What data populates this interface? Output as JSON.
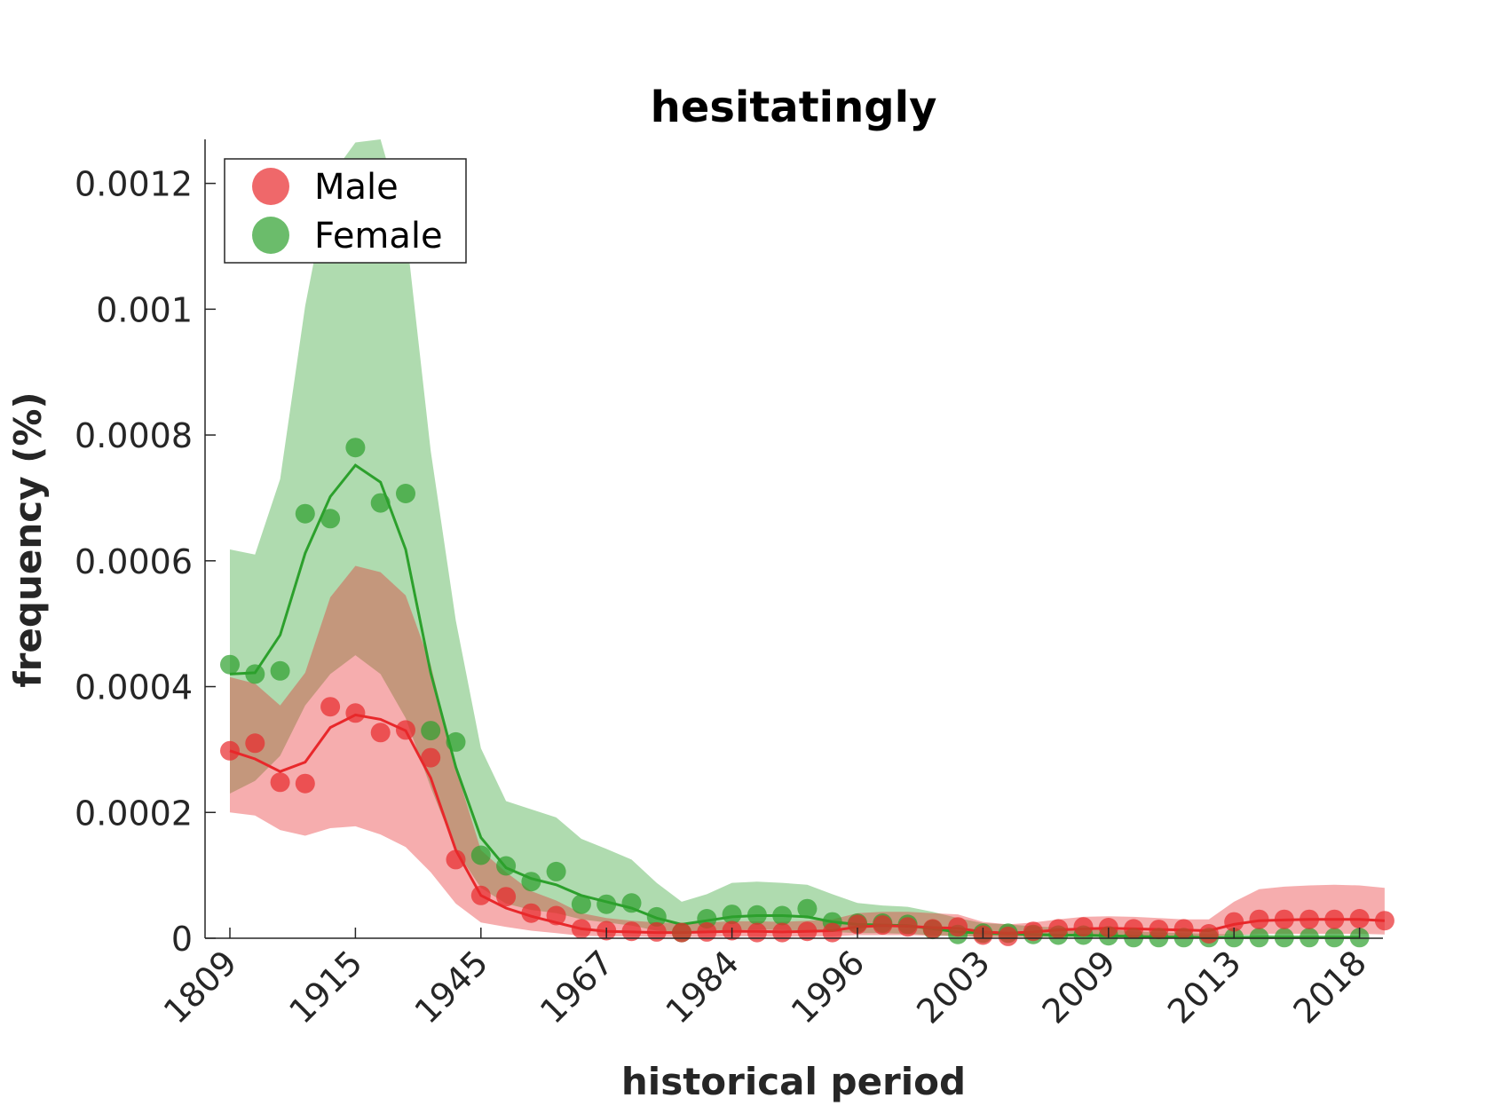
{
  "chart_data": {
    "type": "line",
    "title": "hesitatingly",
    "xlabel": "historical period",
    "ylabel": "frequency (%)",
    "x_tick_labels": [
      "1809",
      "1915",
      "1945",
      "1967",
      "1984",
      "1996",
      "2003",
      "2009",
      "2013",
      "2018"
    ],
    "y_ticks": [
      0,
      0.0002,
      0.0004,
      0.0006,
      0.0008,
      0.001,
      0.0012
    ],
    "y_tick_labels": [
      "0",
      "0.0002",
      "0.0004",
      "0.0006",
      "0.0008",
      "0.001",
      "0.0012"
    ],
    "ylim": [
      0,
      0.00127
    ],
    "grid": false,
    "legend_position": "top-left",
    "colors": {
      "Male": "#e8282b",
      "Female": "#2ca02c"
    },
    "series": [
      {
        "name": "Male",
        "points": [
          0.000298,
          0.00031,
          0.000248,
          0.000246,
          0.000368,
          0.000358,
          0.000327,
          0.000331,
          0.000287,
          0.000125,
          6.8e-05,
          6.6e-05,
          4e-05,
          3.6e-05,
          1.5e-05,
          1.2e-05,
          1.1e-05,
          1e-05,
          9e-06,
          1e-05,
          1.2e-05,
          9e-06,
          9e-06,
          1.1e-05,
          9e-06,
          2.2e-05,
          2.1e-05,
          1.8e-05,
          1.5e-05,
          1.8e-05,
          5e-06,
          3e-06,
          1.1e-05,
          1.5e-05,
          1.8e-05,
          1.7e-05,
          1.5e-05,
          1.4e-05,
          1.5e-05,
          7e-06,
          2.6e-05,
          3e-05,
          3e-05,
          3e-05,
          3e-05,
          3.1e-05,
          2.8e-05
        ],
        "trend": [
          0.000298,
          0.000285,
          0.000265,
          0.00028,
          0.000335,
          0.000355,
          0.000348,
          0.00033,
          0.000255,
          0.00014,
          6.8e-05,
          4.8e-05,
          3.5e-05,
          2.5e-05,
          1.5e-05,
          1.1e-05,
          1e-05,
          9e-06,
          9e-06,
          1e-05,
          1.1e-05,
          1.1e-05,
          1e-05,
          1.1e-05,
          1.2e-05,
          1.8e-05,
          2e-05,
          1.9e-05,
          1.7e-05,
          1.6e-05,
          1e-05,
          8e-06,
          1e-05,
          1.3e-05,
          1.5e-05,
          1.6e-05,
          1.5e-05,
          1.4e-05,
          1.3e-05,
          1.2e-05,
          2.2e-05,
          2.8e-05,
          2.9e-05,
          3e-05,
          3e-05,
          3e-05,
          2.8e-05
        ],
        "band_lower": [
          0.0002,
          0.000195,
          0.000172,
          0.000163,
          0.000175,
          0.000178,
          0.000165,
          0.000145,
          0.000105,
          5.5e-05,
          2.5e-05,
          1.8e-05,
          1.2e-05,
          8e-06,
          4e-06,
          3e-06,
          3e-06,
          2e-06,
          2e-06,
          2e-06,
          3e-06,
          3e-06,
          2e-06,
          3e-06,
          3e-06,
          5e-06,
          5e-06,
          5e-06,
          4e-06,
          4e-06,
          2e-06,
          2e-06,
          2e-06,
          3e-06,
          4e-06,
          4e-06,
          4e-06,
          3e-06,
          3e-06,
          3e-06,
          5e-06,
          7e-06,
          7e-06,
          7e-06,
          7e-06,
          7e-06,
          6e-06
        ],
        "band_upper": [
          0.000415,
          0.000405,
          0.00037,
          0.000422,
          0.000542,
          0.000592,
          0.000582,
          0.000545,
          0.000435,
          0.00027,
          0.00014,
          0.000105,
          7.5e-05,
          6e-05,
          4e-05,
          3.2e-05,
          2.8e-05,
          2.5e-05,
          2.4e-05,
          2.5e-05,
          2.7e-05,
          2.7e-05,
          2.6e-05,
          2.8e-05,
          3e-05,
          4e-05,
          4.2e-05,
          4.2e-05,
          4e-05,
          3.8e-05,
          2.6e-05,
          2.2e-05,
          2.5e-05,
          3e-05,
          3.4e-05,
          3.5e-05,
          3.4e-05,
          3.2e-05,
          3e-05,
          3e-05,
          5.8e-05,
          7.8e-05,
          8.2e-05,
          8.4e-05,
          8.5e-05,
          8.4e-05,
          8e-05
        ]
      },
      {
        "name": "Female",
        "points": [
          0.000435,
          0.00042,
          0.000425,
          0.000675,
          0.000667,
          0.00078,
          0.000692,
          0.000707,
          0.00033,
          0.000312,
          0.000132,
          0.000115,
          9e-05,
          0.000106,
          5.4e-05,
          5.4e-05,
          5.6e-05,
          3.4e-05,
          9e-06,
          3.1e-05,
          3.8e-05,
          3.7e-05,
          3.6e-05,
          4.7e-05,
          2.6e-05,
          2.4e-05,
          2.4e-05,
          2.2e-05,
          1.4e-05,
          6e-06,
          8e-06,
          8e-06,
          6e-06,
          5e-06,
          5e-06,
          4e-06,
          1e-06,
          1e-06,
          1e-06,
          1e-06,
          1e-06,
          1e-06,
          1e-06,
          1e-06,
          1e-06,
          1e-06
        ],
        "trend": [
          0.00042,
          0.000422,
          0.000482,
          0.000612,
          0.000702,
          0.000752,
          0.000725,
          0.000618,
          0.000422,
          0.000272,
          0.00016,
          0.000112,
          9.5e-05,
          8.5e-05,
          6.8e-05,
          5.8e-05,
          4.8e-05,
          3.2e-05,
          2.2e-05,
          2.8e-05,
          3.4e-05,
          3.6e-05,
          3.6e-05,
          3.4e-05,
          2.6e-05,
          2.2e-05,
          2.1e-05,
          2e-05,
          1.5e-05,
          1e-05,
          8e-06,
          7e-06,
          6e-06,
          5e-06,
          5e-06,
          4e-06,
          3e-06,
          2e-06,
          2e-06,
          1e-06,
          1e-06,
          1e-06,
          1e-06,
          1e-06,
          1e-06,
          1e-06
        ],
        "band_lower": [
          0.00023,
          0.00025,
          0.00029,
          0.00037,
          0.00042,
          0.00045,
          0.00042,
          0.00035,
          0.00024,
          0.00014,
          8e-05,
          5.5e-05,
          4.5e-05,
          4e-05,
          3e-05,
          2.5e-05,
          2e-05,
          1.2e-05,
          8e-06,
          1e-05,
          1.3e-05,
          1.4e-05,
          1.3e-05,
          1.2e-05,
          1e-05,
          8e-06,
          8e-06,
          7e-06,
          5e-06,
          3e-06,
          2e-06,
          2e-06,
          2e-06,
          1e-06,
          1e-06,
          1e-06,
          1e-06,
          0.0,
          0.0,
          0.0,
          0.0,
          0.0,
          0.0,
          0.0,
          0.0,
          0.0
        ],
        "band_upper": [
          0.000618,
          0.00061,
          0.00073,
          0.001005,
          0.00121,
          0.001265,
          0.00127,
          0.00113,
          0.000775,
          0.000505,
          0.000302,
          0.000218,
          0.000205,
          0.000192,
          0.000158,
          0.000142,
          0.000125,
          8.8e-05,
          5.8e-05,
          7e-05,
          8.8e-05,
          9e-05,
          8.8e-05,
          8.5e-05,
          7e-05,
          5.6e-05,
          5.2e-05,
          5e-05,
          4.2e-05,
          3.2e-05,
          2.4e-05,
          2.2e-05,
          1.9e-05,
          1.7e-05,
          1.6e-05,
          1.4e-05,
          1.1e-05,
          9e-06,
          8e-06,
          7e-06,
          6e-06,
          6e-06,
          5e-06,
          5e-06,
          5e-06,
          4e-06
        ]
      }
    ]
  }
}
